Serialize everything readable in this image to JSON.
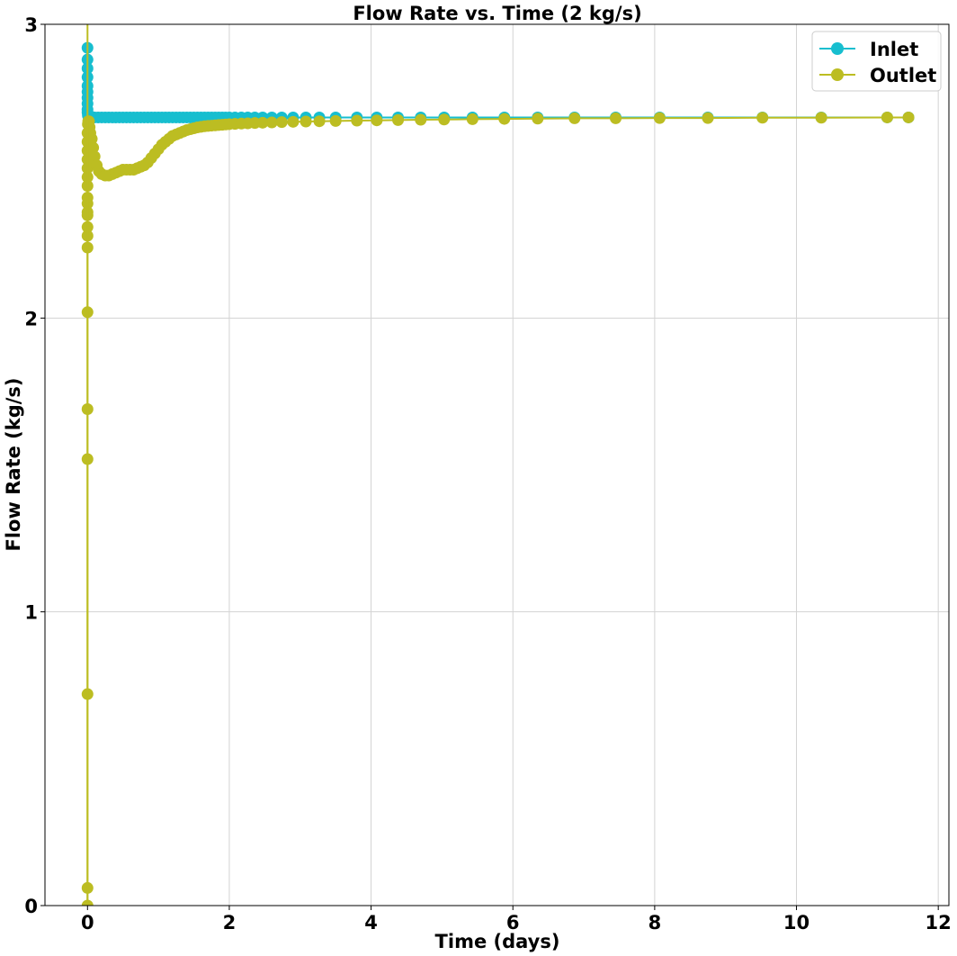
{
  "chart_data": {
    "type": "line",
    "title": "Flow Rate vs. Time (2 kg/s)",
    "xlabel": "Time (days)",
    "ylabel": "Flow Rate (kg/s)",
    "xlim": [
      -0.6,
      12.15
    ],
    "ylim": [
      0,
      3
    ],
    "xticks": [
      0,
      2,
      4,
      6,
      8,
      10,
      12
    ],
    "yticks": [
      0,
      1,
      2,
      3
    ],
    "grid": true,
    "legend_position": "top-right",
    "series": [
      {
        "name": "Inlet",
        "color": "#17becf",
        "marker": "circle",
        "x": [
          0.0,
          0.0,
          0.0,
          0.0,
          0.0,
          0.0,
          0.0,
          0.0,
          0.0,
          0.0,
          0.005,
          0.01,
          0.02,
          0.04,
          0.07,
          0.1,
          0.15,
          0.2,
          0.25,
          0.3,
          0.35,
          0.4,
          0.45,
          0.5,
          0.55,
          0.6,
          0.65,
          0.7,
          0.75,
          0.8,
          0.85,
          0.9,
          0.95,
          1.0,
          1.05,
          1.1,
          1.15,
          1.2,
          1.25,
          1.3,
          1.35,
          1.4,
          1.45,
          1.5,
          1.55,
          1.6,
          1.65,
          1.7,
          1.75,
          1.8,
          1.85,
          1.9,
          1.95,
          2.0,
          2.08,
          2.17,
          2.26,
          2.36,
          2.47,
          2.6,
          2.74,
          2.9,
          3.08,
          3.27,
          3.5,
          3.8,
          4.08,
          4.38,
          4.7,
          5.03,
          5.43,
          5.88,
          6.35,
          6.87,
          7.45,
          8.07,
          8.75,
          9.52,
          10.35,
          11.28,
          11.58
        ],
        "y": [
          2.92,
          2.88,
          2.85,
          2.82,
          2.79,
          2.77,
          2.75,
          2.73,
          2.71,
          2.7,
          2.69,
          2.687,
          2.685,
          2.684,
          2.684,
          2.683,
          2.683,
          2.683,
          2.683,
          2.683,
          2.683,
          2.683,
          2.683,
          2.683,
          2.683,
          2.683,
          2.683,
          2.683,
          2.683,
          2.683,
          2.683,
          2.683,
          2.683,
          2.683,
          2.683,
          2.683,
          2.683,
          2.683,
          2.683,
          2.683,
          2.683,
          2.683,
          2.683,
          2.683,
          2.683,
          2.683,
          2.683,
          2.683,
          2.683,
          2.683,
          2.683,
          2.683,
          2.683,
          2.683,
          2.683,
          2.683,
          2.683,
          2.683,
          2.683,
          2.683,
          2.683,
          2.683,
          2.683,
          2.683,
          2.683,
          2.683,
          2.683,
          2.683,
          2.683,
          2.683,
          2.683,
          2.683,
          2.683,
          2.683,
          2.683,
          2.683,
          2.683,
          2.683,
          2.683,
          2.683,
          2.683
        ]
      },
      {
        "name": "Outlet",
        "color": "#bcbd22",
        "marker": "circle",
        "x": [
          0.0,
          0.0,
          0.0,
          0.0,
          0.0,
          0.0,
          0.0,
          0.0,
          0.0,
          0.0,
          0.0,
          0.0,
          0.0,
          0.0,
          0.0,
          0.0,
          0.0,
          0.0,
          0.0,
          0.0,
          0.005,
          0.01,
          0.02,
          0.03,
          0.04,
          0.06,
          0.08,
          0.1,
          0.13,
          0.16,
          0.2,
          0.25,
          0.3,
          0.35,
          0.4,
          0.45,
          0.5,
          0.55,
          0.6,
          0.65,
          0.7,
          0.75,
          0.8,
          0.85,
          0.9,
          0.95,
          1.0,
          1.05,
          1.1,
          1.15,
          1.2,
          1.25,
          1.3,
          1.35,
          1.4,
          1.45,
          1.5,
          1.55,
          1.6,
          1.65,
          1.7,
          1.75,
          1.8,
          1.85,
          1.9,
          1.95,
          2.0,
          2.08,
          2.17,
          2.26,
          2.36,
          2.47,
          2.6,
          2.74,
          2.9,
          3.08,
          3.27,
          3.5,
          3.8,
          4.08,
          4.38,
          4.7,
          5.03,
          5.43,
          5.88,
          6.35,
          6.87,
          7.45,
          8.07,
          8.75,
          9.52,
          10.35,
          11.28,
          11.58
        ],
        "y": [
          0.0,
          0.06,
          0.72,
          1.52,
          1.69,
          2.02,
          2.24,
          2.28,
          2.31,
          2.35,
          2.36,
          2.39,
          2.41,
          2.45,
          2.48,
          2.51,
          2.54,
          2.57,
          2.6,
          2.63,
          2.66,
          2.67,
          2.67,
          2.65,
          2.63,
          2.61,
          2.58,
          2.55,
          2.52,
          2.5,
          2.49,
          2.485,
          2.485,
          2.49,
          2.495,
          2.5,
          2.505,
          2.505,
          2.505,
          2.505,
          2.51,
          2.515,
          2.52,
          2.53,
          2.545,
          2.56,
          2.575,
          2.59,
          2.6,
          2.61,
          2.62,
          2.625,
          2.63,
          2.635,
          2.64,
          2.643,
          2.646,
          2.649,
          2.651,
          2.653,
          2.654,
          2.655,
          2.656,
          2.657,
          2.658,
          2.659,
          2.66,
          2.661,
          2.662,
          2.663,
          2.664,
          2.665,
          2.666,
          2.667,
          2.668,
          2.669,
          2.67,
          2.671,
          2.672,
          2.673,
          2.674,
          2.675,
          2.676,
          2.677,
          2.678,
          2.679,
          2.68,
          2.68,
          2.681,
          2.681,
          2.682,
          2.682,
          2.683,
          2.683
        ]
      }
    ]
  }
}
